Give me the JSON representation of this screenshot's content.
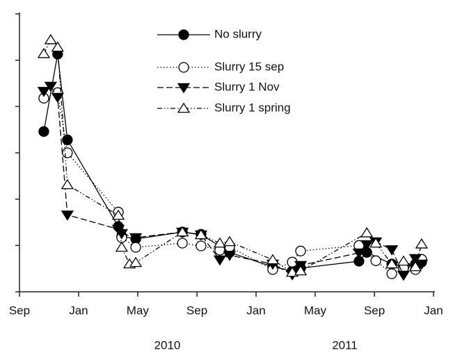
{
  "chart_data": {
    "type": "line",
    "xlim": [
      2009.667,
      2012
    ],
    "ylim": [
      0,
      6
    ],
    "yticks": [
      0,
      1,
      2,
      3,
      4,
      5,
      6
    ],
    "xticks": [
      {
        "value": 2009.667,
        "label": "Sep"
      },
      {
        "value": 2010,
        "label": "Jan"
      },
      {
        "value": 2010.333,
        "label": "May"
      },
      {
        "value": 2010.667,
        "label": "Sep"
      },
      {
        "value": 2011,
        "label": "Jan"
      },
      {
        "value": 2011.333,
        "label": "May"
      },
      {
        "value": 2011.667,
        "label": "Sep"
      },
      {
        "value": 2012,
        "label": "Jan"
      }
    ],
    "year_ticks": [
      {
        "value": 2010.5,
        "label": "2010"
      },
      {
        "value": 2011.5,
        "label": "2011"
      }
    ],
    "series": [
      {
        "name": "No slurry",
        "color": "#000000",
        "dash": "none",
        "marker": "filled-circle",
        "x": [
          2009.804,
          2009.882,
          2009.937,
          2010.224,
          2010.243,
          2010.322,
          2010.585,
          2010.69,
          2010.851,
          2011.094,
          2011.204,
          2011.251,
          2011.58,
          2011.624,
          2011.765,
          2011.831,
          2011.898,
          2011.933
        ],
        "values": [
          3.46,
          5.13,
          3.28,
          1.41,
          1.2,
          1.14,
          1.29,
          1.24,
          0.85,
          0.54,
          0.45,
          0.51,
          0.66,
          0.85,
          0.6,
          0.54,
          0.6,
          0.64
        ]
      },
      {
        "name": "Slurry 15 sep",
        "color": "#000000",
        "dash": "1.5 3",
        "marker": "open-circle",
        "x": [
          2009.804,
          2009.882,
          2009.937,
          2010.224,
          2010.243,
          2010.322,
          2010.585,
          2010.69,
          2010.796,
          2010.851,
          2011.094,
          2011.204,
          2011.251,
          2011.58,
          2011.675,
          2011.765,
          2011.831,
          2011.898,
          2011.933
        ],
        "values": [
          4.18,
          4.3,
          3.0,
          1.72,
          1.17,
          0.96,
          1.05,
          0.99,
          0.9,
          0.97,
          0.48,
          0.64,
          0.88,
          1.0,
          0.67,
          0.39,
          0.51,
          0.48,
          0.7
        ]
      },
      {
        "name": "Slurry 1 Nov",
        "color": "#000000",
        "dash": "9 4",
        "marker": "filled-down-triangle",
        "x": [
          2009.804,
          2009.843,
          2009.882,
          2009.937,
          2010.224,
          2010.243,
          2010.322,
          2010.585,
          2010.69,
          2010.796,
          2010.851,
          2011.094,
          2011.204,
          2011.251,
          2011.58,
          2011.624,
          2011.675,
          2011.765,
          2011.831,
          2011.898,
          2011.933
        ],
        "values": [
          4.33,
          4.44,
          4.2,
          1.66,
          1.35,
          1.26,
          1.17,
          1.29,
          1.23,
          0.69,
          0.79,
          0.6,
          0.37,
          0.57,
          0.84,
          1.02,
          1.08,
          0.91,
          0.36,
          0.72,
          0.6
        ]
      },
      {
        "name": "Slurry 1 spring",
        "color": "#000000",
        "dash": "7 3 1.5 3 1.5 3",
        "marker": "open-up-triangle",
        "x": [
          2009.804,
          2009.843,
          2009.882,
          2009.937,
          2010.224,
          2010.243,
          2010.287,
          2010.322,
          2010.585,
          2010.69,
          2010.796,
          2010.851,
          2011.094,
          2011.204,
          2011.251,
          2011.624,
          2011.675,
          2011.765,
          2011.831,
          2011.898,
          2011.933
        ],
        "values": [
          5.14,
          5.44,
          5.28,
          2.31,
          1.65,
          0.96,
          0.6,
          0.63,
          1.29,
          1.23,
          1.05,
          1.08,
          0.69,
          0.42,
          0.45,
          1.27,
          1.05,
          0.6,
          0.66,
          0.54,
          1.03
        ]
      }
    ]
  }
}
